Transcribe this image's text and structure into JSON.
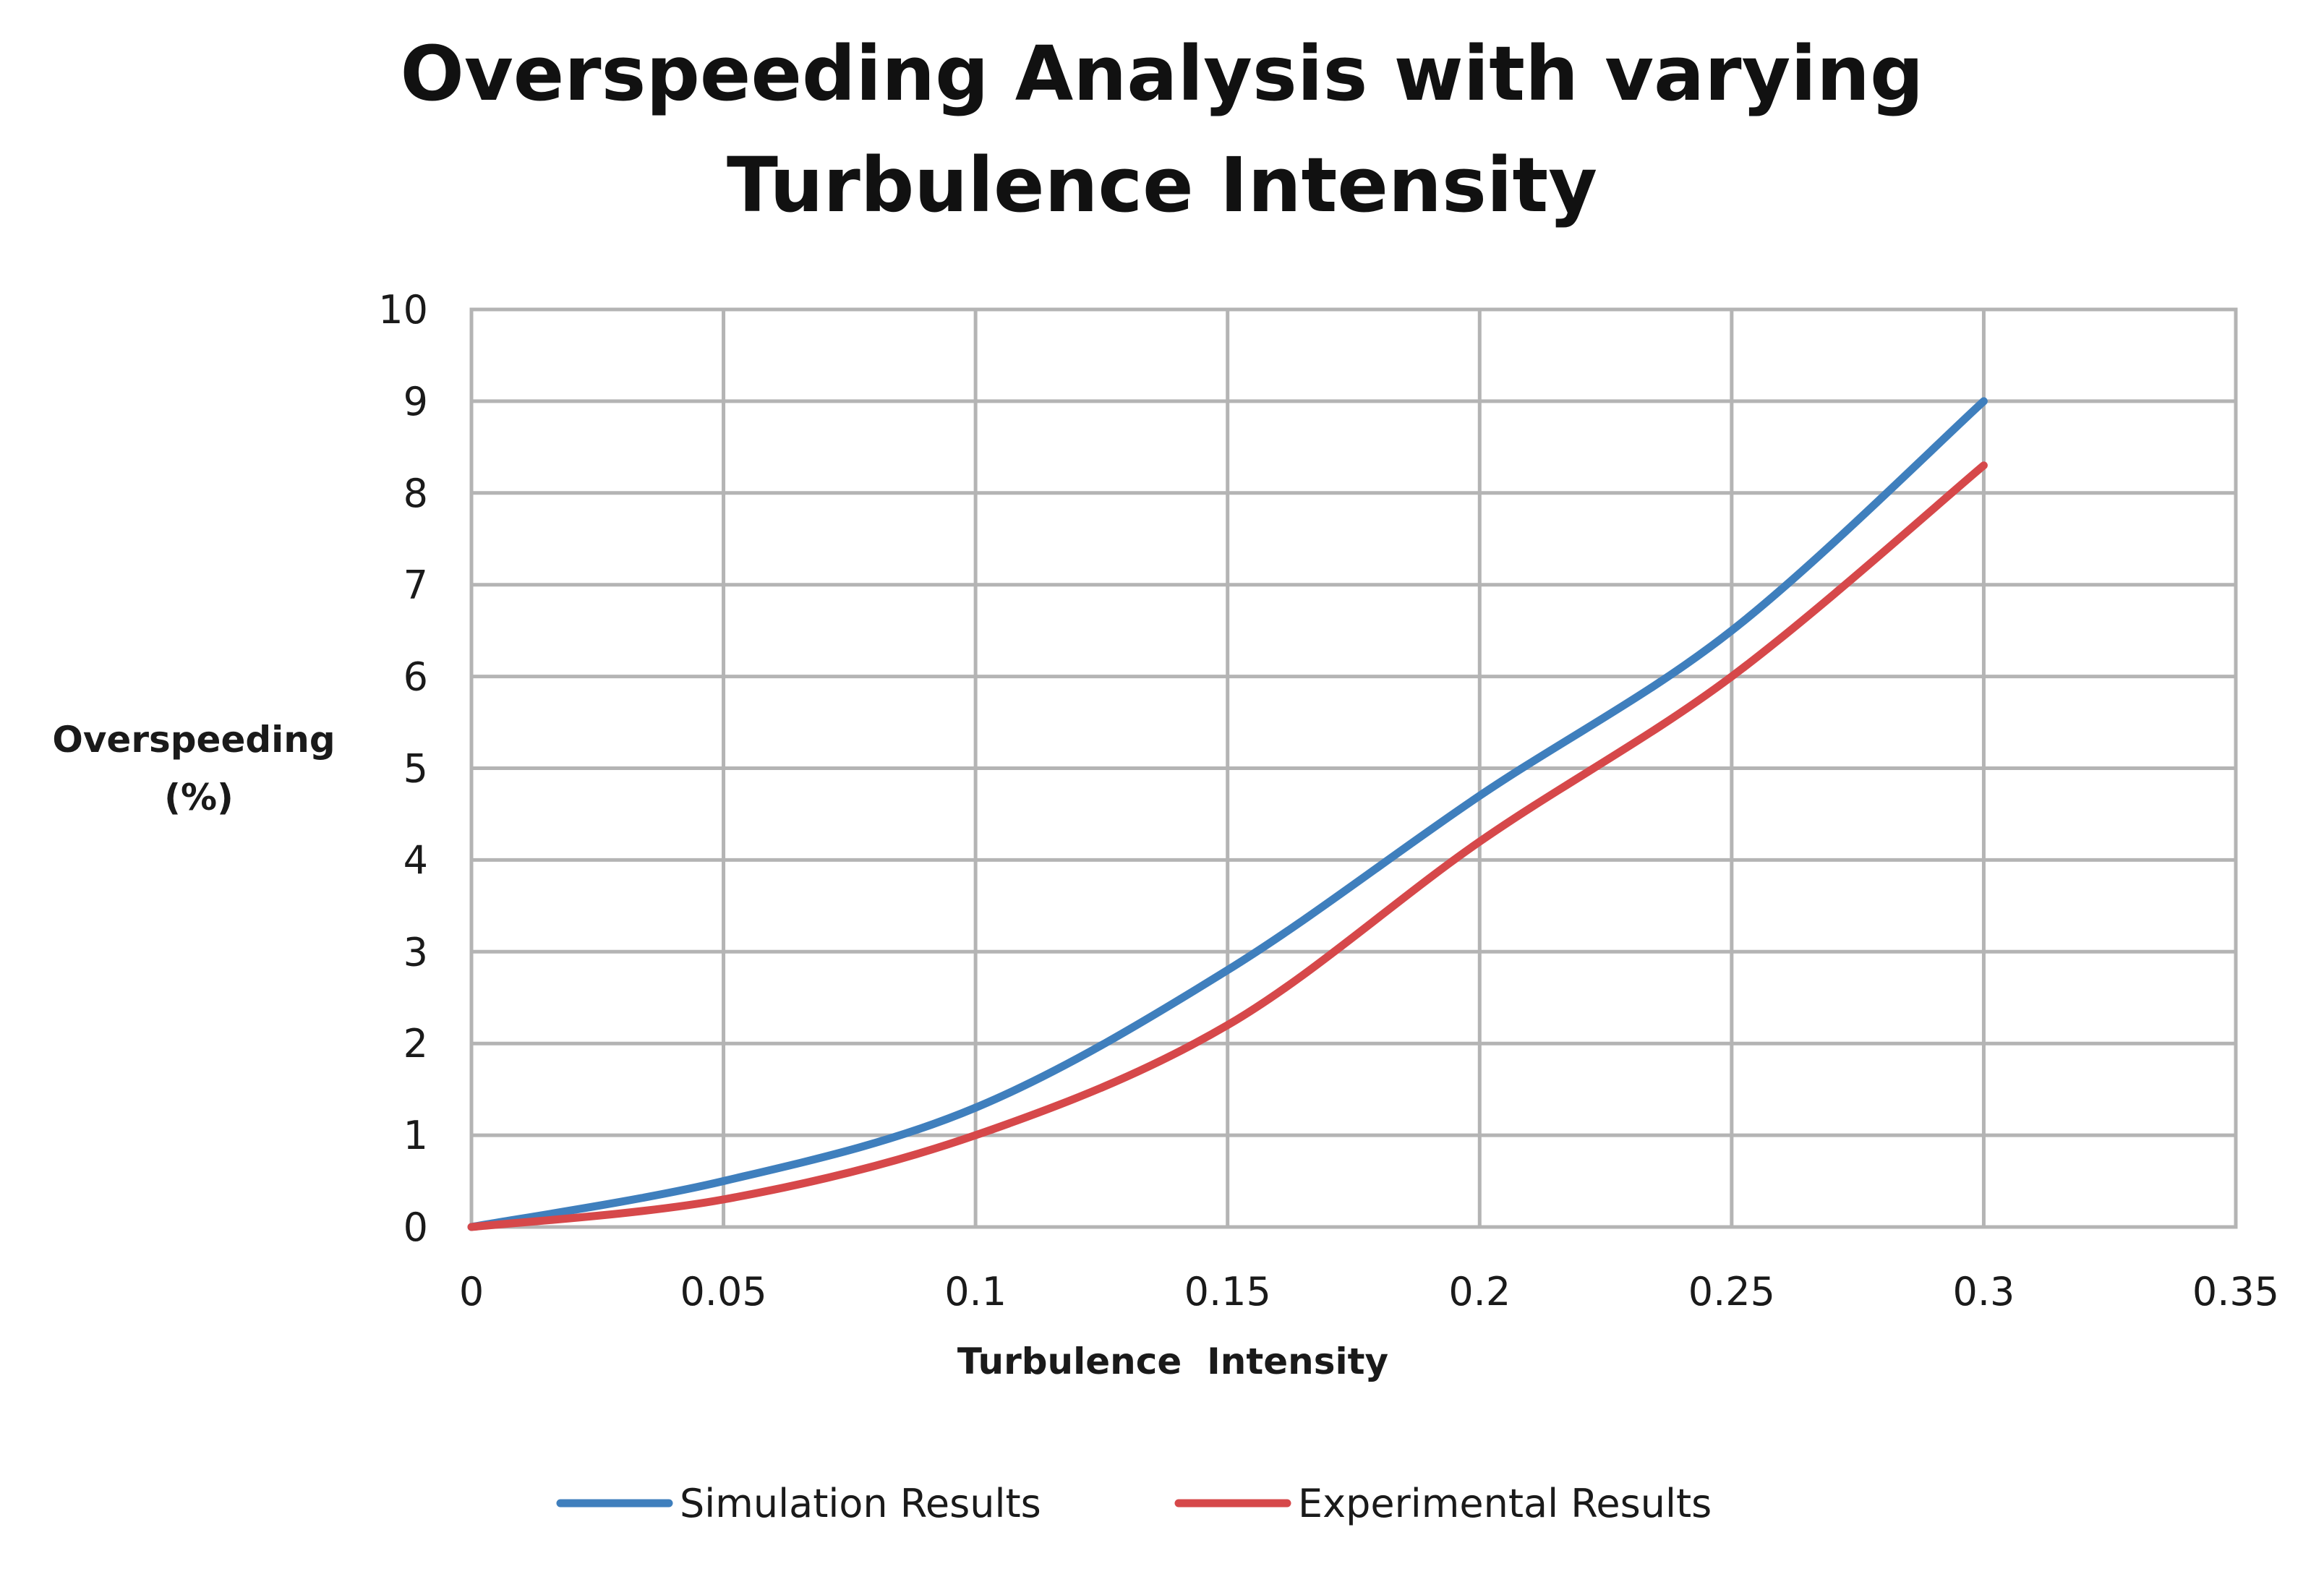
{
  "chart_data": {
    "type": "line",
    "title": [
      "Overspeeding Analysis with varying",
      "Turbulence Intensity"
    ],
    "xlabel": "Turbulence  Intensity",
    "ylabel": [
      "Overspeeding",
      "(%)"
    ],
    "xlim": [
      0,
      0.35
    ],
    "ylim": [
      0,
      10
    ],
    "xticks": [
      0,
      0.05,
      0.1,
      0.15,
      0.2,
      0.25,
      0.3,
      0.35
    ],
    "xtick_labels": [
      "0",
      "0.05",
      "0.1",
      "0.15",
      "0.2",
      "0.25",
      "0.3",
      "0.35"
    ],
    "yticks": [
      0,
      1,
      2,
      3,
      4,
      5,
      6,
      7,
      8,
      9,
      10
    ],
    "ytick_labels": [
      "0",
      "1",
      "2",
      "3",
      "4",
      "5",
      "6",
      "7",
      "8",
      "9",
      "10"
    ],
    "grid": true,
    "legend_position": "bottom",
    "series": [
      {
        "name": "Simulation Results",
        "color": "#3f7fbd",
        "x": [
          0,
          0.05,
          0.1,
          0.15,
          0.2,
          0.25,
          0.3
        ],
        "values": [
          0,
          0.5,
          1.3,
          2.8,
          4.7,
          6.5,
          9.0
        ]
      },
      {
        "name": "Experimental Results",
        "color": "#d6484a",
        "x": [
          0,
          0.05,
          0.1,
          0.15,
          0.2,
          0.25,
          0.3
        ],
        "values": [
          0,
          0.3,
          1.0,
          2.2,
          4.2,
          6.0,
          8.3
        ]
      }
    ]
  }
}
